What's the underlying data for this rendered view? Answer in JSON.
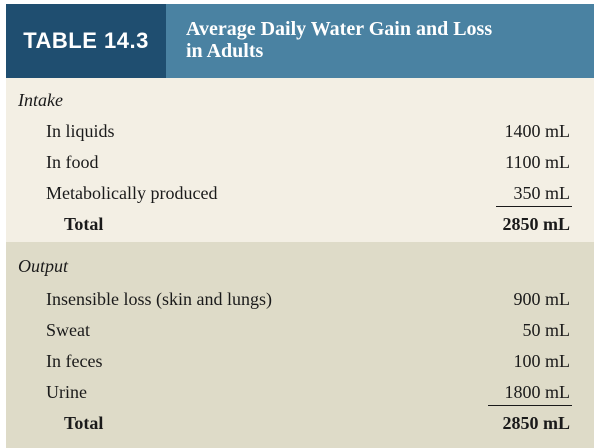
{
  "table": {
    "label": "TABLE 14.3",
    "title_line1": "Average Daily Water Gain and Loss",
    "title_line2": "in Adults"
  },
  "intake": {
    "heading": "Intake",
    "rows": [
      {
        "label": "In liquids",
        "value": "1400 mL"
      },
      {
        "label": "In food",
        "value": "1100 mL"
      },
      {
        "label": "Metabolically produced",
        "value": "350 mL"
      }
    ],
    "total_label": "Total",
    "total_value": "2850 mL"
  },
  "output": {
    "heading": "Output",
    "rows": [
      {
        "label": "Insensible loss (skin and lungs)",
        "value": "900 mL"
      },
      {
        "label": "Sweat",
        "value": "50 mL"
      },
      {
        "label": "In feces",
        "value": "100 mL"
      },
      {
        "label": "Urine",
        "value": "1800 mL"
      }
    ],
    "total_label": "Total",
    "total_value": "2850 mL"
  },
  "colors": {
    "label_bg": "#1f4e70",
    "header_bg": "#4a82a2",
    "intake_bg": "#f3efe4",
    "output_bg": "#dedbc8"
  }
}
